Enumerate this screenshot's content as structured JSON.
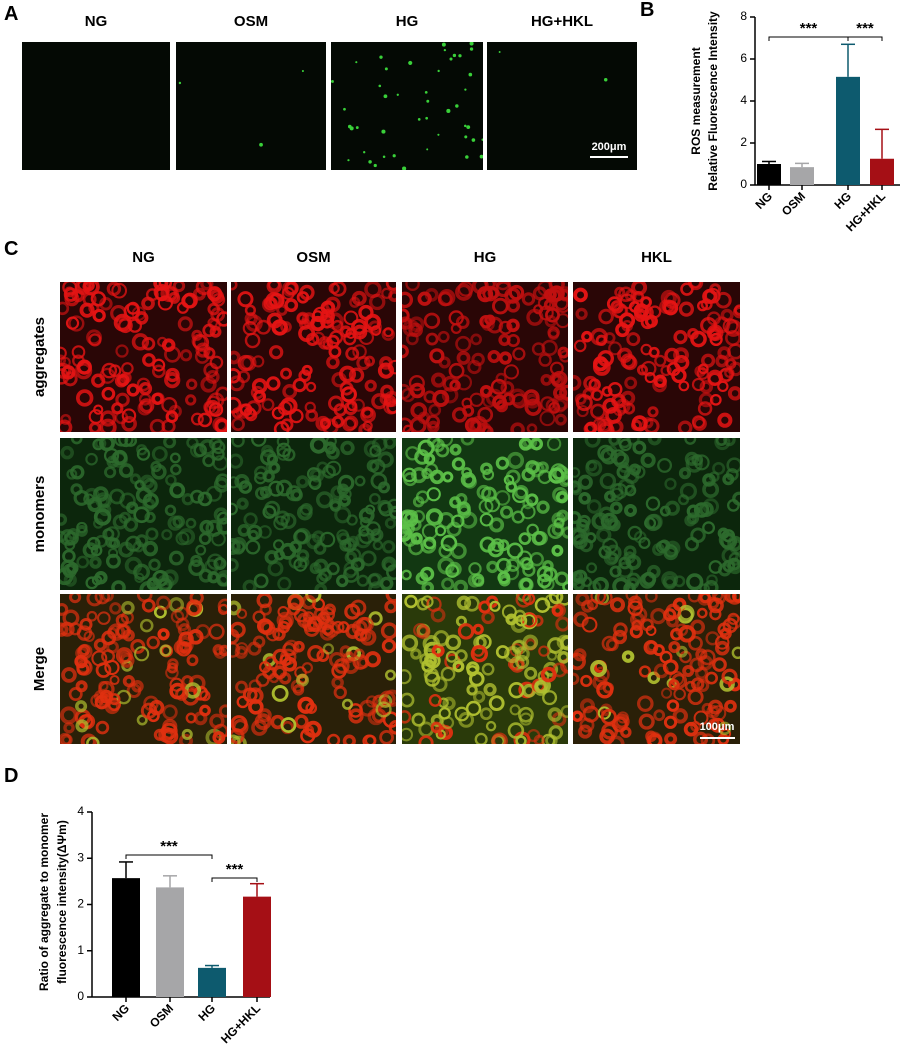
{
  "panel_labels": [
    "A",
    "B",
    "C",
    "D"
  ],
  "panel_a": {
    "columns": [
      "NG",
      "OSM",
      "HG",
      "HG+HKL"
    ],
    "scale_bar": "200μm"
  },
  "panel_c": {
    "columns": [
      "NG",
      "OSM",
      "HG",
      "HKL"
    ],
    "rows": [
      "aggregates",
      "monomers",
      "Merge"
    ],
    "scale_bar": "100μm"
  },
  "chart_data": [
    {
      "type": "bar",
      "ylabel": [
        "ROS measurement",
        "Relative Fluorescence Intensity"
      ],
      "categories": [
        "NG",
        "OSM",
        "HG",
        "HG+HKL"
      ],
      "values": [
        1.0,
        0.85,
        5.15,
        1.25
      ],
      "errors": [
        0.12,
        0.18,
        1.55,
        1.4
      ],
      "colors": [
        "#000000",
        "#a6a6a8",
        "#0d5a6e",
        "#a50f15"
      ],
      "ylim": [
        0,
        8
      ],
      "yticks": [
        0,
        2,
        4,
        6,
        8
      ],
      "annotations": [
        "***",
        "***"
      ]
    },
    {
      "type": "bar",
      "ylabel": [
        "Ratio of aggregate to monomer",
        "fluorescence intensity(ΔΨm)"
      ],
      "categories": [
        "NG",
        "OSM",
        "HG",
        "HG+HKL"
      ],
      "values": [
        2.57,
        2.37,
        0.63,
        2.17
      ],
      "errors": [
        0.35,
        0.25,
        0.05,
        0.28
      ],
      "colors": [
        "#000000",
        "#a6a6a8",
        "#0d5a6e",
        "#a50f15"
      ],
      "ylim": [
        0,
        4
      ],
      "yticks": [
        0,
        1,
        2,
        3,
        4
      ],
      "annotations": [
        "***",
        "***"
      ]
    }
  ]
}
